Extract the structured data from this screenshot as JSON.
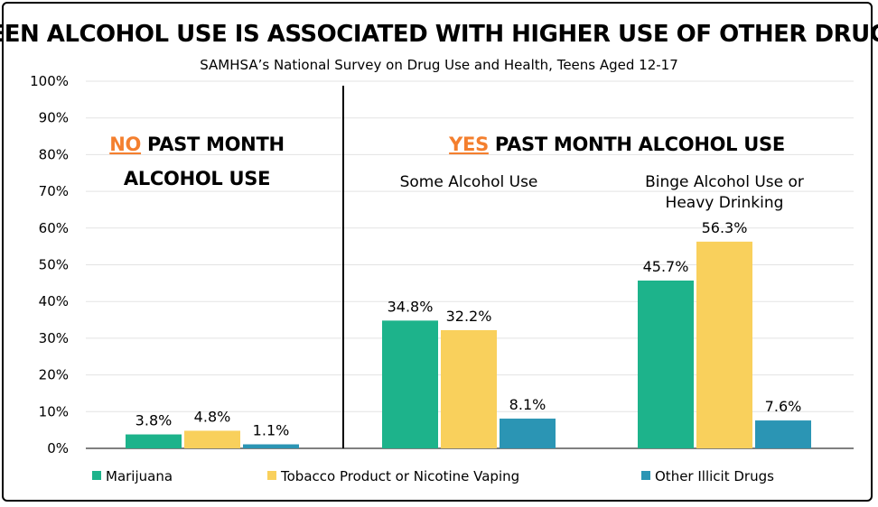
{
  "chart_data": {
    "type": "bar",
    "title": "TEEN ALCOHOL USE IS ASSOCIATED WITH HIGHER USE OF OTHER DRUGS",
    "subtitle": "SAMHSA’s National Survey on Drug Use and Health, Teens Aged 12-17",
    "ylim": [
      0,
      100
    ],
    "yticks": [
      "0%",
      "10%",
      "20%",
      "30%",
      "40%",
      "50%",
      "60%",
      "70%",
      "80%",
      "90%",
      "100%"
    ],
    "panels": {
      "no": {
        "highlight": "NO",
        "rest_line1": " PAST MONTH",
        "line2": "ALCOHOL USE"
      },
      "yes": {
        "highlight": "YES",
        "rest": " PAST MONTH ALCOHOL USE"
      }
    },
    "groups": [
      {
        "label_lines": [],
        "values": [
          3.8,
          4.8,
          1.1
        ],
        "labels": [
          "3.8%",
          "4.8%",
          "1.1%"
        ]
      },
      {
        "label_lines": [
          "Some Alcohol Use"
        ],
        "values": [
          34.8,
          32.2,
          8.1
        ],
        "labels": [
          "34.8%",
          "32.2%",
          "8.1%"
        ]
      },
      {
        "label_lines": [
          "Binge Alcohol Use or",
          "Heavy Drinking"
        ],
        "values": [
          45.7,
          56.3,
          7.6
        ],
        "labels": [
          "45.7%",
          "56.3%",
          "7.6%"
        ]
      }
    ],
    "series": [
      {
        "name": "Marijuana",
        "color": "#1db38b"
      },
      {
        "name": "Tobacco Product or Nicotine Vaping",
        "color": "#f9d05c"
      },
      {
        "name": "Other Illicit Drugs",
        "color": "#2b95b4"
      }
    ],
    "highlight_color": "#f47f2e"
  }
}
